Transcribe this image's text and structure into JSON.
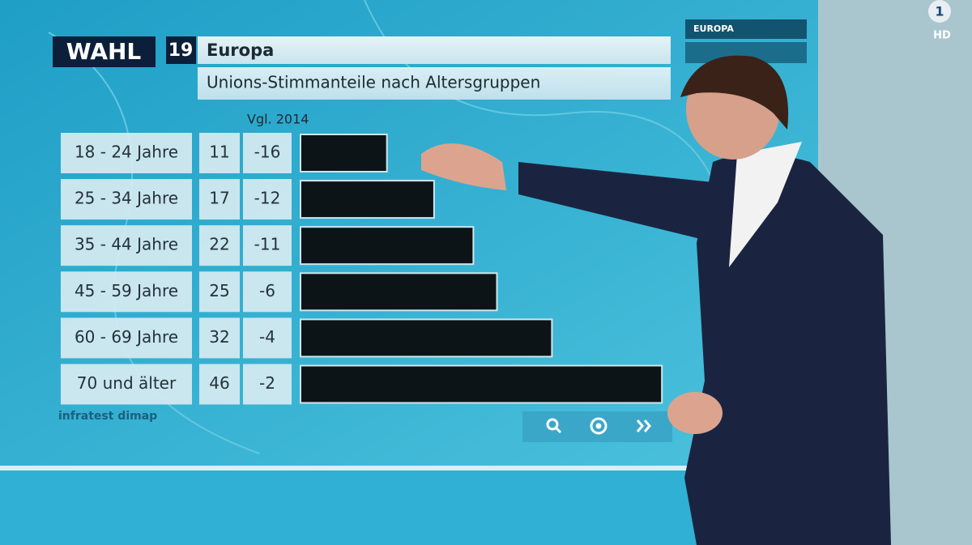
{
  "brand": {
    "channel": "1",
    "quality": "HD"
  },
  "menu": {
    "items": [
      "EUROPA"
    ]
  },
  "chart_data": {
    "type": "bar",
    "orientation": "horizontal",
    "badge": "WAHL",
    "badge_number": "19",
    "title": "Europa",
    "subtitle": "Unions-Stimmanteile nach Altersgruppen",
    "comparison_label": "Vgl. 2014",
    "source": "infratest dimap",
    "categories": [
      "18 - 24 Jahre",
      "25 - 34 Jahre",
      "35 - 44 Jahre",
      "45 - 59 Jahre",
      "60 - 69 Jahre",
      "70 und älter"
    ],
    "values": [
      11,
      17,
      22,
      25,
      32,
      46
    ],
    "comparison": [
      -16,
      -12,
      -11,
      -6,
      -4,
      -2
    ],
    "color": "#0d1417"
  }
}
